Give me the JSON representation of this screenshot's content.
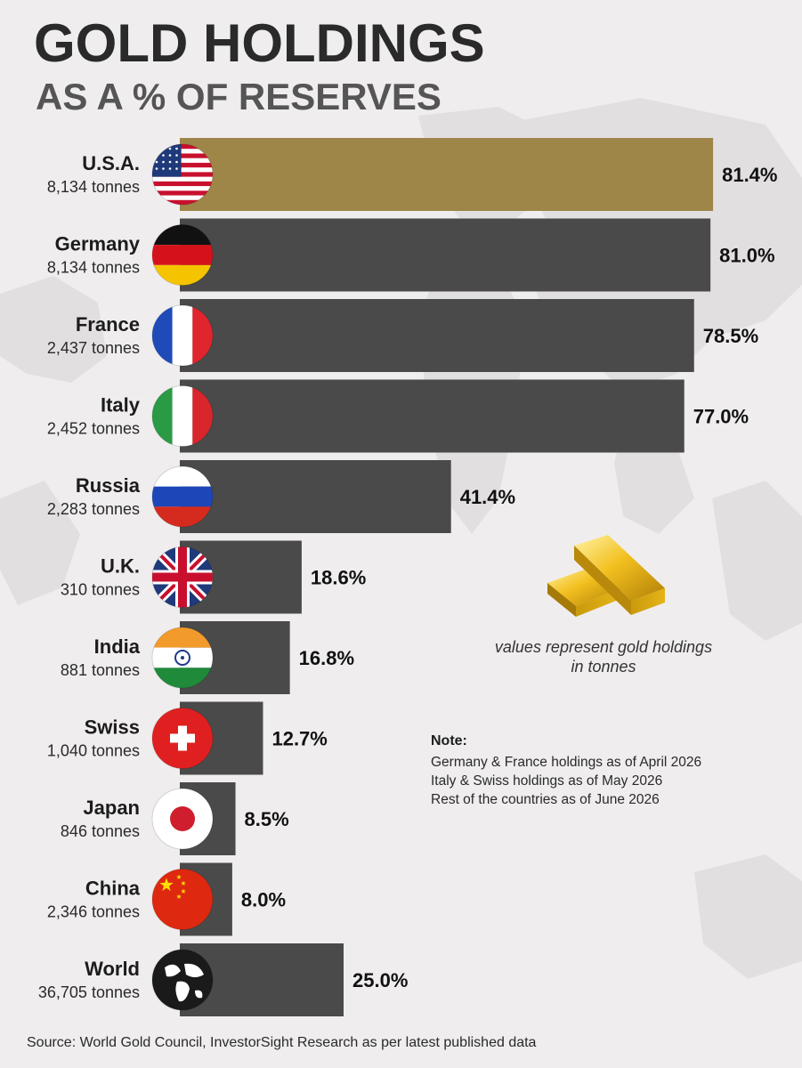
{
  "header": {
    "title": "GOLD HOLDINGS",
    "subtitle": "AS A % OF RESERVES"
  },
  "chart_data": {
    "type": "bar",
    "orientation": "horizontal",
    "title": "GOLD HOLDINGS",
    "subtitle": "AS A % OF RESERVES",
    "xlim": [
      0,
      100
    ],
    "grid": false,
    "categories": [
      "U.S.A.",
      "Germany",
      "France",
      "Italy",
      "Russia",
      "U.K.",
      "India",
      "Swiss",
      "Japan",
      "China",
      "World"
    ],
    "tonnes_labels": [
      "8,134 tonnes",
      "8,134 tonnes",
      "2,437 tonnes",
      "2,452 tonnes",
      "2,283 tonnes",
      "310 tonnes",
      "881 tonnes",
      "1,040 tonnes",
      "846 tonnes",
      "2,346 tonnes",
      "36,705 tonnes"
    ],
    "values": [
      81.4,
      81.0,
      78.5,
      77.0,
      41.4,
      18.6,
      16.8,
      12.7,
      8.5,
      8.0,
      25.0
    ],
    "value_labels": [
      "81.4%",
      "81.0%",
      "78.5%",
      "77.0%",
      "41.4%",
      "18.6%",
      "16.8%",
      "12.7%",
      "8.5%",
      "8.0%",
      "25.0%"
    ],
    "flags": [
      "usa-flag-icon",
      "germany-flag-icon",
      "france-flag-icon",
      "italy-flag-icon",
      "russia-flag-icon",
      "uk-flag-icon",
      "india-flag-icon",
      "switzerland-flag-icon",
      "japan-flag-icon",
      "china-flag-icon",
      "globe-icon"
    ],
    "bar_colors": [
      "#9e8548",
      "#4a4a4a",
      "#4a4a4a",
      "#4a4a4a",
      "#4a4a4a",
      "#4a4a4a",
      "#4a4a4a",
      "#4a4a4a",
      "#4a4a4a",
      "#4a4a4a",
      "#4a4a4a"
    ]
  },
  "gold_note": "values represent gold holdings in tonnes",
  "note": {
    "title": "Note:",
    "lines": [
      "Germany & France holdings as of April 2026",
      "Italy & Swiss holdings as of May 2026",
      "Rest of the countries as of June 2026"
    ]
  },
  "source": "Source: World Gold Council, InvestorSight Research as per latest published data"
}
